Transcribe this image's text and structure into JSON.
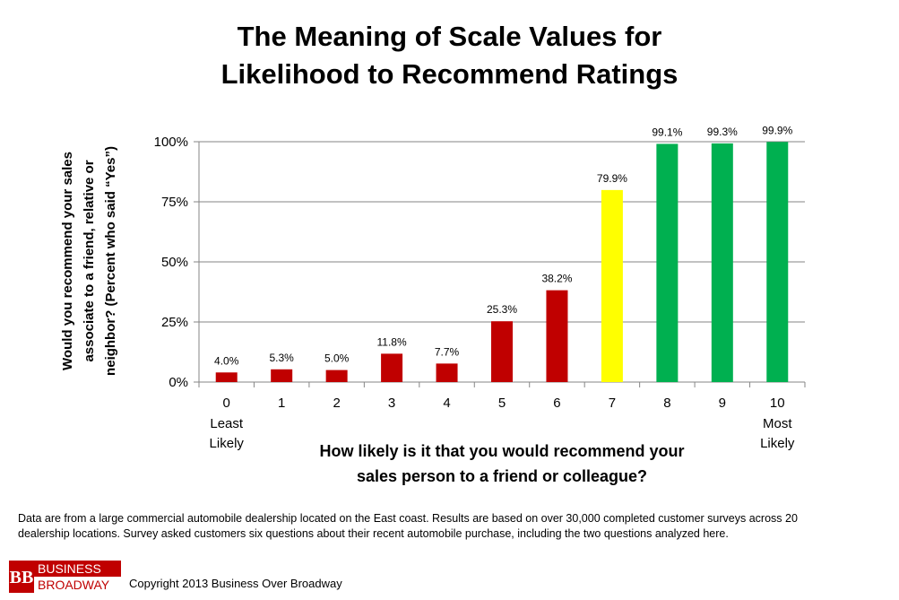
{
  "title_line1": "The Meaning of Scale Values for",
  "title_line2": "Likelihood to Recommend Ratings",
  "footnote_line1": "Data are from a large commercial automobile dealership located on the East coast. Results are based on over 30,000 completed customer surveys across 20",
  "footnote_line2": "dealership locations. Survey asked customers six questions about their recent automobile purchase, including the two questions analyzed here.",
  "brand": {
    "line1": "BUSINESS",
    "line2": "BROADWAY",
    "mark": "BB"
  },
  "copyright": "Copyright 2013 Business Over Broadway",
  "colors": {
    "red": "#c00000",
    "yellow": "#ffff00",
    "green": "#00b050",
    "grid": "#868686",
    "brand_red": "#c00000"
  },
  "chart_data": {
    "type": "bar",
    "categories": [
      "0",
      "1",
      "2",
      "3",
      "4",
      "5",
      "6",
      "7",
      "8",
      "9",
      "10"
    ],
    "values": [
      4.0,
      5.3,
      5.0,
      11.8,
      7.7,
      25.3,
      38.2,
      79.9,
      99.1,
      99.3,
      99.9
    ],
    "data_labels": [
      "4.0%",
      "5.3%",
      "5.0%",
      "11.8%",
      "7.7%",
      "25.3%",
      "38.2%",
      "79.9%",
      "99.1%",
      "99.3%",
      "99.9%"
    ],
    "bar_colors": [
      "#c00000",
      "#c00000",
      "#c00000",
      "#c00000",
      "#c00000",
      "#c00000",
      "#c00000",
      "#ffff00",
      "#00b050",
      "#00b050",
      "#00b050"
    ],
    "category_sublabels": {
      "0": [
        "Least",
        "Likely"
      ],
      "10": [
        "Most",
        "Likely"
      ]
    },
    "ylim": [
      0,
      100
    ],
    "yticks": [
      0,
      25,
      50,
      75,
      100
    ],
    "ytick_labels": [
      "0%",
      "25%",
      "50%",
      "75%",
      "100%"
    ],
    "xlabel_lines": [
      "How likely is it that you would recommend your",
      "sales person to a friend or colleague?"
    ],
    "ylabel_lines": [
      "Would you recommend your sales",
      "associate to a friend, relative or",
      "neighbor? (Percent who said “Yes”)"
    ],
    "grid": true,
    "legend": "none"
  }
}
